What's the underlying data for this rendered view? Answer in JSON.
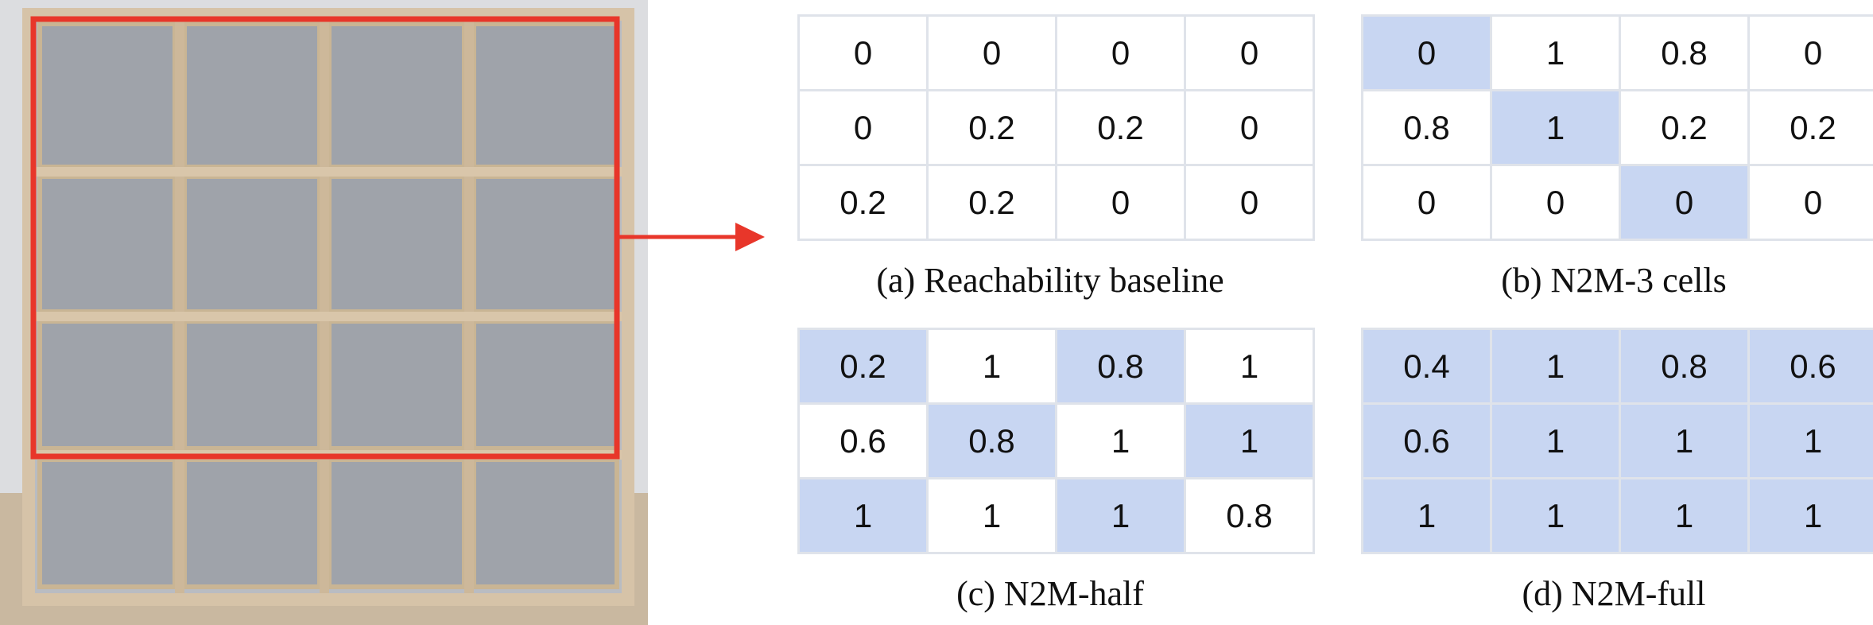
{
  "colors": {
    "arrow": "#e8362a",
    "highlight": "#c8d6f2",
    "grid_border": "#dfe3ea",
    "frame": "#e8362a",
    "wood": "#d6c3a8"
  },
  "photo": {
    "subject": "shelf-photo"
  },
  "panels": [
    {
      "caption": "(a) Reachability baseline",
      "cells": [
        [
          {
            "v": "0",
            "h": false
          },
          {
            "v": "0",
            "h": false
          },
          {
            "v": "0",
            "h": false
          },
          {
            "v": "0",
            "h": false
          }
        ],
        [
          {
            "v": "0",
            "h": false
          },
          {
            "v": "0.2",
            "h": false
          },
          {
            "v": "0.2",
            "h": false
          },
          {
            "v": "0",
            "h": false
          }
        ],
        [
          {
            "v": "0.2",
            "h": false
          },
          {
            "v": "0.2",
            "h": false
          },
          {
            "v": "0",
            "h": false
          },
          {
            "v": "0",
            "h": false
          }
        ]
      ]
    },
    {
      "caption": "(b) N2M-3 cells",
      "cells": [
        [
          {
            "v": "0",
            "h": true
          },
          {
            "v": "1",
            "h": false
          },
          {
            "v": "0.8",
            "h": false
          },
          {
            "v": "0",
            "h": false
          }
        ],
        [
          {
            "v": "0.8",
            "h": false
          },
          {
            "v": "1",
            "h": true
          },
          {
            "v": "0.2",
            "h": false
          },
          {
            "v": "0.2",
            "h": false
          }
        ],
        [
          {
            "v": "0",
            "h": false
          },
          {
            "v": "0",
            "h": false
          },
          {
            "v": "0",
            "h": true
          },
          {
            "v": "0",
            "h": false
          }
        ]
      ]
    },
    {
      "caption": "(c) N2M-half",
      "cells": [
        [
          {
            "v": "0.2",
            "h": true
          },
          {
            "v": "1",
            "h": false
          },
          {
            "v": "0.8",
            "h": true
          },
          {
            "v": "1",
            "h": false
          }
        ],
        [
          {
            "v": "0.6",
            "h": false
          },
          {
            "v": "0.8",
            "h": true
          },
          {
            "v": "1",
            "h": false
          },
          {
            "v": "1",
            "h": true
          }
        ],
        [
          {
            "v": "1",
            "h": true
          },
          {
            "v": "1",
            "h": false
          },
          {
            "v": "1",
            "h": true
          },
          {
            "v": "0.8",
            "h": false
          }
        ]
      ]
    },
    {
      "caption": "(d) N2M-full",
      "cells": [
        [
          {
            "v": "0.4",
            "h": true
          },
          {
            "v": "1",
            "h": true
          },
          {
            "v": "0.8",
            "h": true
          },
          {
            "v": "0.6",
            "h": true
          }
        ],
        [
          {
            "v": "0.6",
            "h": true
          },
          {
            "v": "1",
            "h": true
          },
          {
            "v": "1",
            "h": true
          },
          {
            "v": "1",
            "h": true
          }
        ],
        [
          {
            "v": "1",
            "h": true
          },
          {
            "v": "1",
            "h": true
          },
          {
            "v": "1",
            "h": true
          },
          {
            "v": "1",
            "h": true
          }
        ]
      ]
    }
  ]
}
